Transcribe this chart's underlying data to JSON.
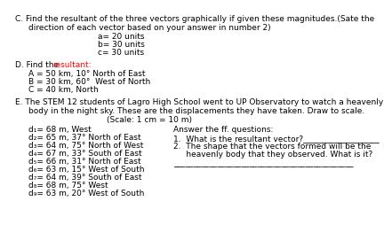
{
  "bg_color": "#ffffff",
  "font_family": "sans-serif",
  "fs": 6.5,
  "sec_c": {
    "line1": "C. Find the resultant of the three vectors graphically if given these magnitudes.(Sate the",
    "line2": "direction of each vector based on your answer in number 2)",
    "items": [
      "a= 20 units",
      "b= 30 units",
      "c= 30 units"
    ]
  },
  "sec_d": {
    "prefix": "D. Find the ",
    "red": "resultant:",
    "items": [
      "A = 50 km, 10° North of East",
      "B = 30 km, 60°  West of North",
      "C = 40 km, North"
    ]
  },
  "sec_e": {
    "line1": "E. The STEM 12 students of Lagro High School went to UP Observatory to watch a heavenly",
    "line2": "body in the night sky. These are the displacements they have taken. Draw to scale.",
    "line3": "(Scale: 1 cm = 10 m)",
    "left": [
      "d₁= 68 m, West",
      "d₂= 65 m, 37° North of East",
      "d₃= 64 m, 75° North of West",
      "d₄= 67 m, 33° South of East",
      "d₅= 66 m, 31° North of East",
      "d₆= 63 m, 15° West of South",
      "d₇= 64 m, 39° South of East",
      "d₈= 68 m, 75° West",
      "d₉= 63 m, 20° West of South"
    ],
    "right_header": "Answer the ff. questions:",
    "right_q1": "1.  What is the resultant vector?___________________",
    "right_q2a": "2.  The shape that the vectors formed will be the",
    "right_q2b": "     heavenly body that they observed. What is it?",
    "answer_line": "_____________________________________________"
  }
}
